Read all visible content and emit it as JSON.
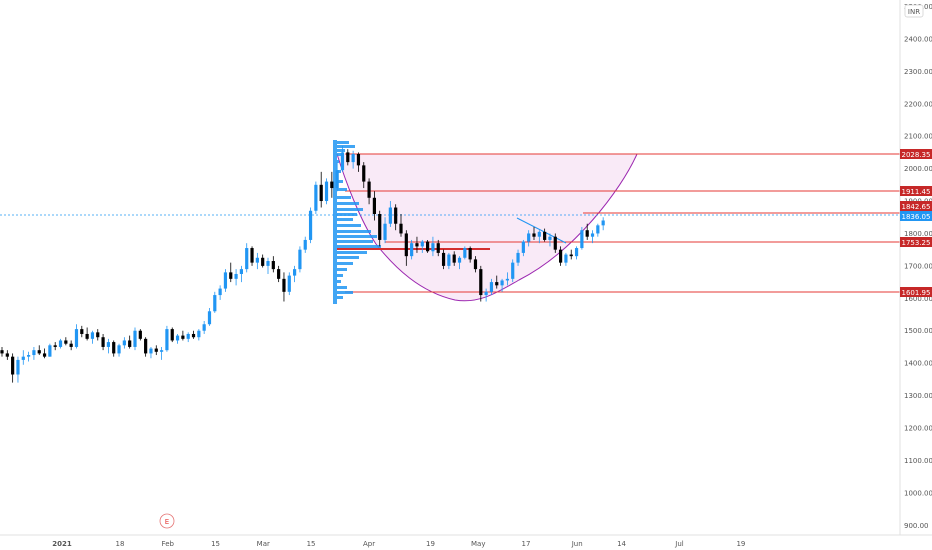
{
  "axis": {
    "currency_badge": "INR",
    "price_ticks": [
      "2500.00",
      "2400.00",
      "2300.00",
      "2200.00",
      "2100.00",
      "2000.00",
      "1900.00",
      "1800.00",
      "1700.00",
      "1600.00",
      "1500.00",
      "1400.00",
      "1300.00",
      "1200.00",
      "1100.00",
      "1000.00",
      "900.00"
    ],
    "time_ticks": [
      "2021",
      "18",
      "Feb",
      "15",
      "Mar",
      "15",
      "Apr",
      "19",
      "May",
      "17",
      "Jun",
      "14",
      "Jul",
      "19"
    ],
    "earnings_marker": "E"
  },
  "levels": {
    "l2028": "2028.35",
    "l1911": "1911.45",
    "l1842": "1842.65",
    "last": "1836.05",
    "l1753": "1753.25",
    "l1601": "1601.95"
  },
  "colors": {
    "up": "#2196f3",
    "down": "#000000",
    "level_line": "#e53935",
    "level_badge": "#c62828",
    "last_price": "#2196f3",
    "cup_curve": "#9c27b0",
    "cup_fill": "#f8e6f6"
  },
  "chart_data": {
    "type": "candlestick",
    "ylim": [
      870,
      2520
    ],
    "candles": [
      [
        "2021-01-01",
        1440,
        1450,
        1420,
        1430
      ],
      [
        "2021-01-04",
        1430,
        1440,
        1410,
        1420
      ],
      [
        "2021-01-05",
        1420,
        1430,
        1340,
        1365
      ],
      [
        "2021-01-06",
        1365,
        1420,
        1340,
        1410
      ],
      [
        "2021-01-07",
        1410,
        1440,
        1395,
        1420
      ],
      [
        "2021-01-08",
        1420,
        1435,
        1405,
        1425
      ],
      [
        "2021-01-11",
        1425,
        1450,
        1410,
        1440
      ],
      [
        "2021-01-12",
        1440,
        1455,
        1425,
        1430
      ],
      [
        "2021-01-13",
        1430,
        1445,
        1415,
        1420
      ],
      [
        "2021-01-14",
        1420,
        1460,
        1420,
        1455
      ],
      [
        "2021-01-15",
        1455,
        1465,
        1440,
        1450
      ],
      [
        "2021-01-18",
        1450,
        1475,
        1445,
        1470
      ],
      [
        "2021-01-19",
        1470,
        1480,
        1455,
        1460
      ],
      [
        "2021-01-20",
        1460,
        1470,
        1440,
        1450
      ],
      [
        "2021-01-21",
        1450,
        1520,
        1445,
        1505
      ],
      [
        "2021-01-22",
        1505,
        1515,
        1480,
        1490
      ],
      [
        "2021-01-25",
        1490,
        1510,
        1470,
        1475
      ],
      [
        "2021-01-26",
        1475,
        1500,
        1460,
        1495
      ],
      [
        "2021-01-27",
        1495,
        1505,
        1470,
        1480
      ],
      [
        "2021-01-28",
        1480,
        1490,
        1440,
        1450
      ],
      [
        "2021-01-29",
        1450,
        1475,
        1430,
        1465
      ],
      [
        "2021-02-01",
        1465,
        1470,
        1420,
        1430
      ],
      [
        "2021-02-02",
        1430,
        1460,
        1420,
        1455
      ],
      [
        "2021-02-03",
        1455,
        1480,
        1445,
        1470
      ],
      [
        "2021-02-04",
        1470,
        1485,
        1445,
        1450
      ],
      [
        "2021-02-05",
        1450,
        1510,
        1440,
        1500
      ],
      [
        "2021-02-08",
        1500,
        1505,
        1470,
        1475
      ],
      [
        "2021-02-09",
        1475,
        1480,
        1420,
        1430
      ],
      [
        "2021-02-10",
        1430,
        1450,
        1415,
        1445
      ],
      [
        "2021-02-11",
        1445,
        1455,
        1425,
        1435
      ],
      [
        "2021-02-12",
        1435,
        1450,
        1410,
        1440
      ],
      [
        "2021-02-15",
        1440,
        1515,
        1435,
        1505
      ],
      [
        "2021-02-16",
        1505,
        1510,
        1465,
        1470
      ],
      [
        "2021-02-17",
        1470,
        1490,
        1460,
        1485
      ],
      [
        "2021-02-18",
        1485,
        1500,
        1470,
        1475
      ],
      [
        "2021-02-19",
        1475,
        1495,
        1465,
        1490
      ],
      [
        "2021-02-22",
        1490,
        1500,
        1475,
        1480
      ],
      [
        "2021-02-23",
        1480,
        1505,
        1470,
        1500
      ],
      [
        "2021-02-24",
        1500,
        1530,
        1490,
        1520
      ],
      [
        "2021-02-25",
        1520,
        1570,
        1515,
        1560
      ],
      [
        "2021-02-26",
        1560,
        1620,
        1555,
        1610
      ],
      [
        "2021-03-01",
        1610,
        1640,
        1595,
        1630
      ],
      [
        "2021-03-02",
        1630,
        1690,
        1620,
        1680
      ],
      [
        "2021-03-03",
        1680,
        1710,
        1650,
        1660
      ],
      [
        "2021-03-04",
        1660,
        1690,
        1640,
        1675
      ],
      [
        "2021-03-05",
        1675,
        1700,
        1650,
        1690
      ],
      [
        "2021-03-08",
        1690,
        1770,
        1680,
        1755
      ],
      [
        "2021-03-09",
        1755,
        1760,
        1700,
        1710
      ],
      [
        "2021-03-10",
        1710,
        1740,
        1690,
        1725
      ],
      [
        "2021-03-11",
        1725,
        1735,
        1695,
        1700
      ],
      [
        "2021-03-12",
        1700,
        1725,
        1675,
        1715
      ],
      [
        "2021-03-15",
        1715,
        1730,
        1680,
        1690
      ],
      [
        "2021-03-16",
        1690,
        1700,
        1650,
        1660
      ],
      [
        "2021-03-17",
        1660,
        1680,
        1590,
        1620
      ],
      [
        "2021-03-18",
        1620,
        1680,
        1610,
        1670
      ],
      [
        "2021-03-19",
        1670,
        1700,
        1650,
        1690
      ],
      [
        "2021-03-22",
        1690,
        1760,
        1680,
        1750
      ],
      [
        "2021-03-23",
        1750,
        1790,
        1740,
        1780
      ],
      [
        "2021-03-24",
        1780,
        1880,
        1770,
        1870
      ],
      [
        "2021-03-25",
        1870,
        1960,
        1860,
        1950
      ],
      [
        "2021-03-26",
        1950,
        1990,
        1880,
        1900
      ],
      [
        "2021-03-29",
        1900,
        1970,
        1890,
        1960
      ],
      [
        "2021-03-30",
        1960,
        1990,
        1910,
        1940
      ],
      [
        "2021-03-31",
        1940,
        2020,
        1930,
        1995
      ],
      [
        "2021-04-01",
        1995,
        2070,
        1990,
        2050
      ],
      [
        "2021-04-02",
        2050,
        2060,
        2010,
        2020
      ],
      [
        "2021-04-05",
        2020,
        2055,
        2000,
        2045
      ],
      [
        "2021-04-06",
        2045,
        2050,
        1990,
        2010
      ],
      [
        "2021-04-07",
        2010,
        2020,
        1940,
        1960
      ],
      [
        "2021-04-08",
        1960,
        1970,
        1890,
        1910
      ],
      [
        "2021-04-09",
        1910,
        1930,
        1840,
        1860
      ],
      [
        "2021-04-12",
        1860,
        1870,
        1760,
        1780
      ],
      [
        "2021-04-13",
        1780,
        1850,
        1770,
        1830
      ],
      [
        "2021-04-14",
        1830,
        1900,
        1820,
        1880
      ],
      [
        "2021-04-15",
        1880,
        1890,
        1810,
        1830
      ],
      [
        "2021-04-16",
        1830,
        1860,
        1790,
        1800
      ],
      [
        "2021-04-19",
        1800,
        1810,
        1700,
        1730
      ],
      [
        "2021-04-20",
        1730,
        1780,
        1720,
        1770
      ],
      [
        "2021-04-21",
        1770,
        1790,
        1740,
        1760
      ],
      [
        "2021-04-22",
        1760,
        1780,
        1740,
        1775
      ],
      [
        "2021-04-23",
        1775,
        1780,
        1740,
        1745
      ],
      [
        "2021-04-26",
        1745,
        1790,
        1730,
        1770
      ],
      [
        "2021-04-27",
        1770,
        1780,
        1730,
        1740
      ],
      [
        "2021-04-28",
        1740,
        1750,
        1690,
        1700
      ],
      [
        "2021-04-29",
        1700,
        1740,
        1690,
        1735
      ],
      [
        "2021-04-30",
        1735,
        1745,
        1700,
        1710
      ],
      [
        "2021-05-03",
        1710,
        1730,
        1690,
        1725
      ],
      [
        "2021-05-04",
        1725,
        1760,
        1720,
        1755
      ],
      [
        "2021-05-05",
        1755,
        1760,
        1710,
        1720
      ],
      [
        "2021-05-06",
        1720,
        1730,
        1680,
        1690
      ],
      [
        "2021-05-07",
        1690,
        1700,
        1590,
        1610
      ],
      [
        "2021-05-10",
        1610,
        1630,
        1590,
        1620
      ],
      [
        "2021-05-11",
        1620,
        1660,
        1610,
        1650
      ],
      [
        "2021-05-12",
        1650,
        1670,
        1630,
        1640
      ],
      [
        "2021-05-13",
        1640,
        1660,
        1620,
        1655
      ],
      [
        "2021-05-14",
        1655,
        1680,
        1640,
        1660
      ],
      [
        "2021-05-17",
        1660,
        1720,
        1650,
        1710
      ],
      [
        "2021-05-18",
        1710,
        1750,
        1700,
        1740
      ],
      [
        "2021-05-19",
        1740,
        1780,
        1730,
        1775
      ],
      [
        "2021-05-20",
        1775,
        1810,
        1760,
        1800
      ],
      [
        "2021-05-21",
        1800,
        1820,
        1780,
        1790
      ],
      [
        "2021-05-24",
        1790,
        1810,
        1770,
        1805
      ],
      [
        "2021-05-25",
        1805,
        1815,
        1775,
        1780
      ],
      [
        "2021-05-26",
        1780,
        1800,
        1760,
        1790
      ],
      [
        "2021-05-27",
        1790,
        1800,
        1740,
        1750
      ],
      [
        "2021-05-28",
        1750,
        1760,
        1700,
        1710
      ],
      [
        "2021-05-31",
        1710,
        1740,
        1700,
        1735
      ],
      [
        "2021-06-01",
        1735,
        1750,
        1720,
        1730
      ],
      [
        "2021-06-02",
        1730,
        1760,
        1720,
        1755
      ],
      [
        "2021-06-03",
        1755,
        1820,
        1750,
        1810
      ],
      [
        "2021-06-04",
        1810,
        1830,
        1780,
        1790
      ],
      [
        "2021-06-07",
        1790,
        1810,
        1770,
        1800
      ],
      [
        "2021-06-08",
        1800,
        1830,
        1790,
        1825
      ],
      [
        "2021-06-09",
        1825,
        1850,
        1810,
        1840
      ]
    ]
  }
}
